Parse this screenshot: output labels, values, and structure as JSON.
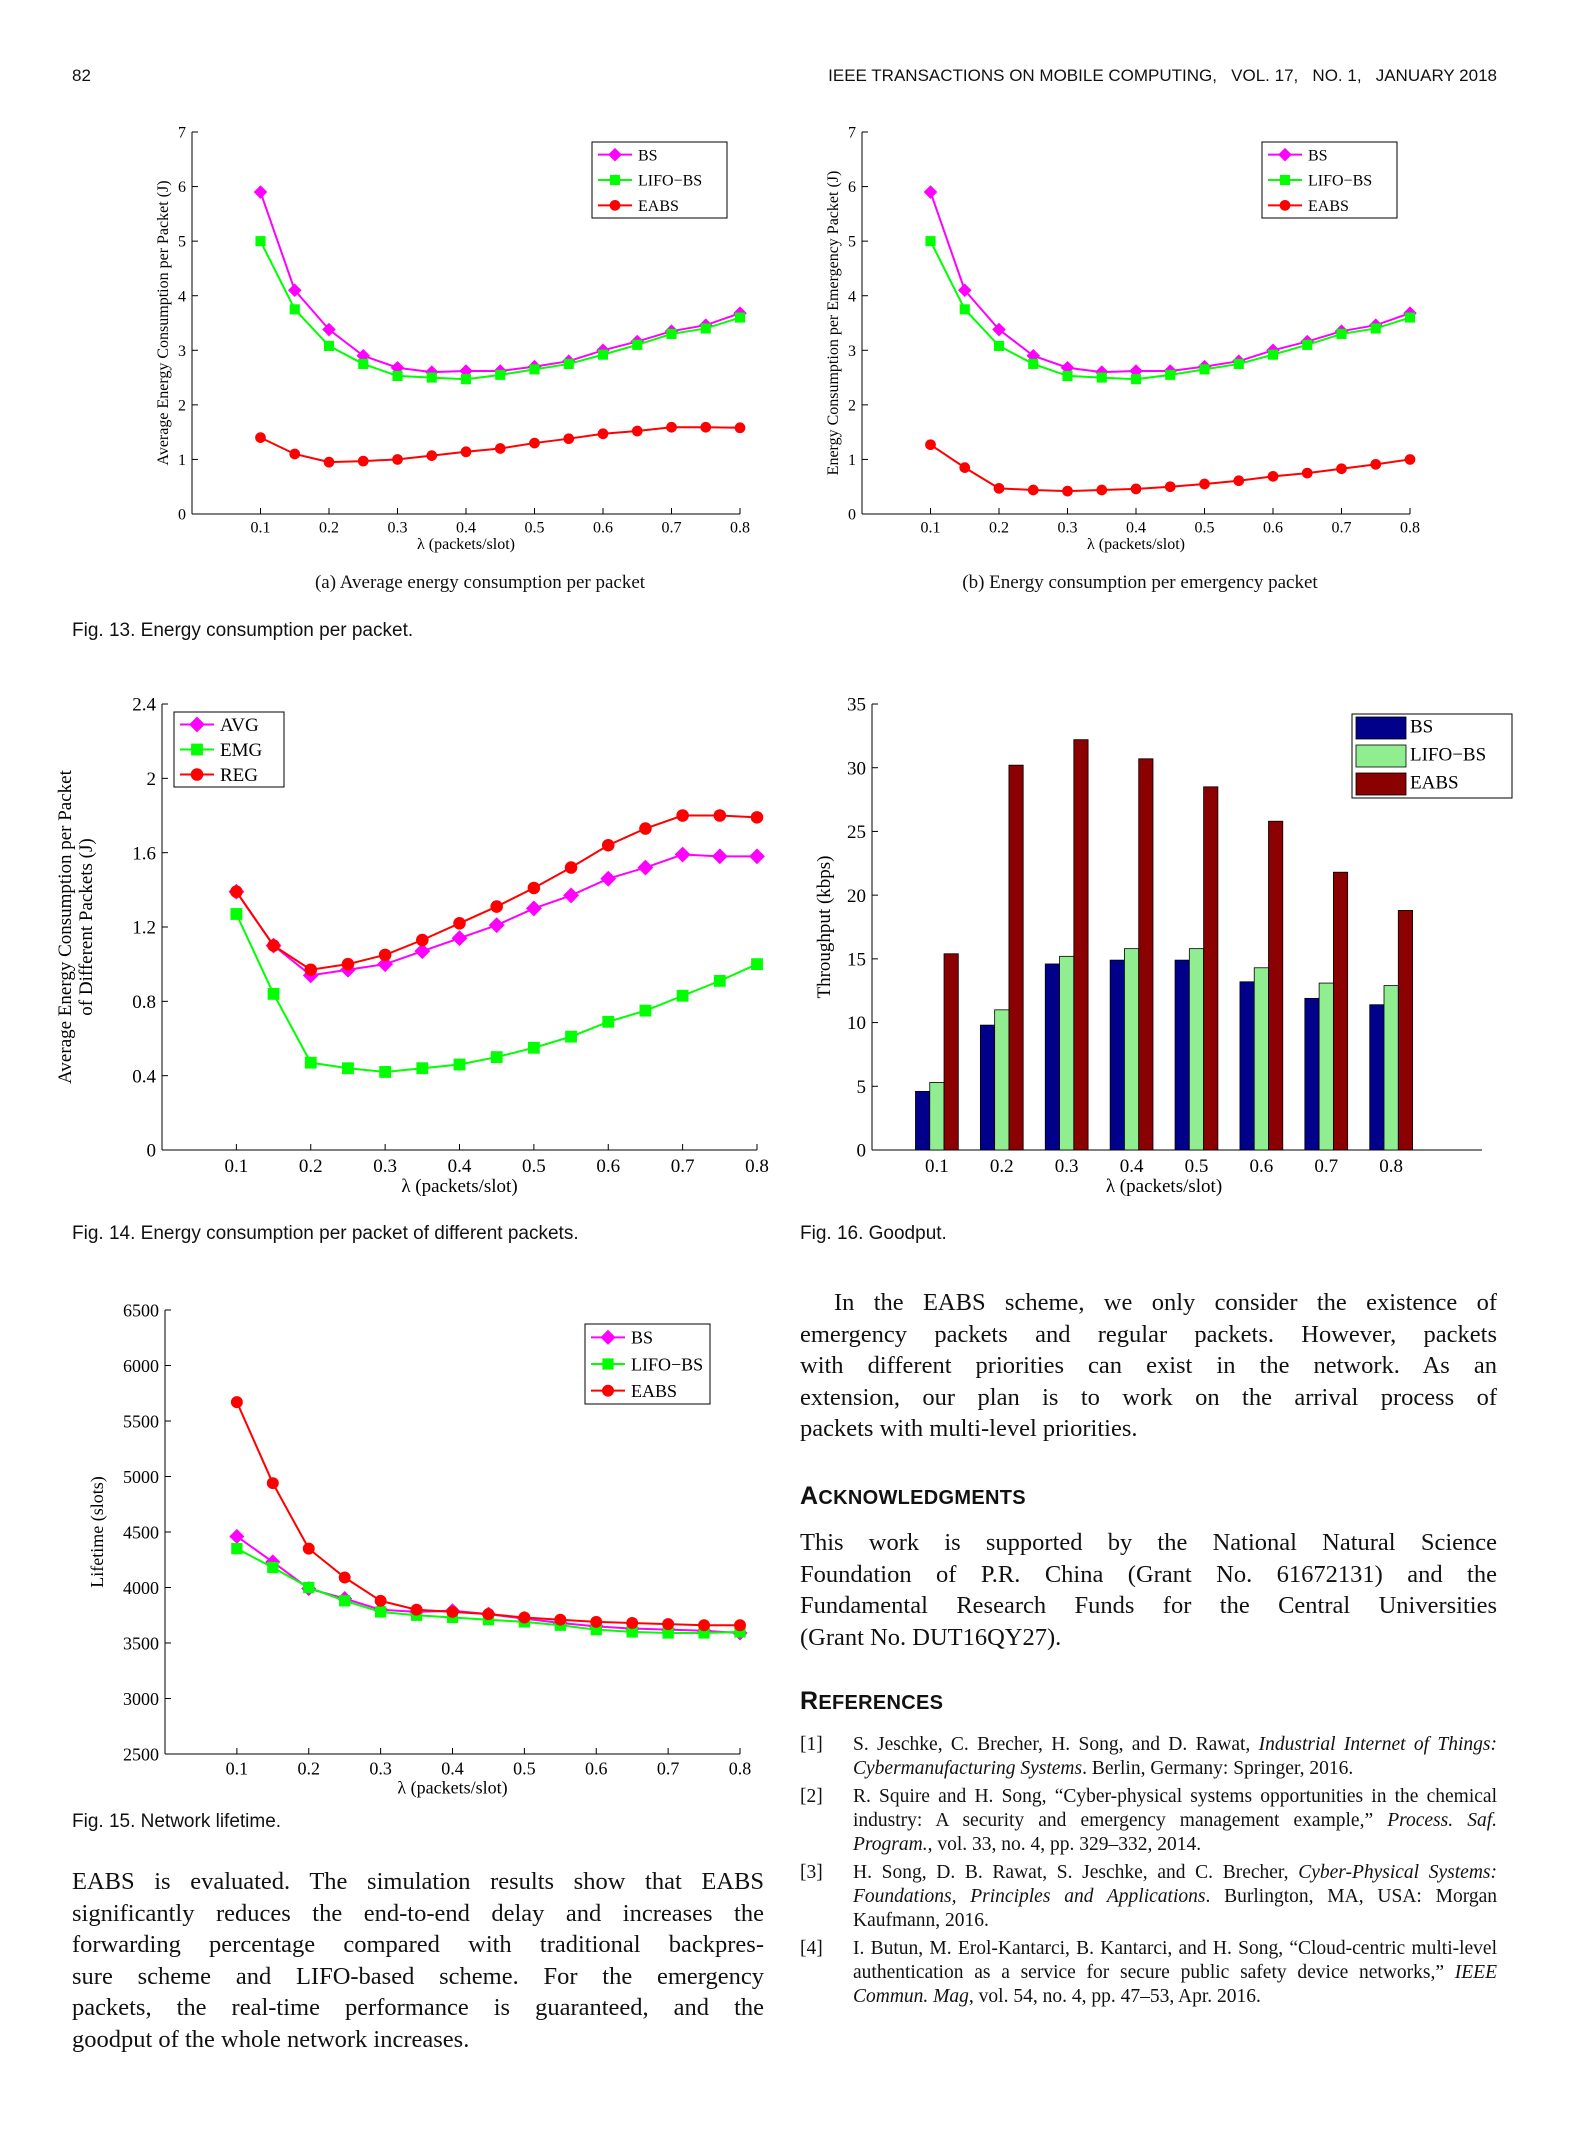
{
  "header": {
    "page_number": "82",
    "journal": "IEEE TRANSACTIONS ON MOBILE COMPUTING,   VOL. 17,   NO. 1,   JANUARY 2018"
  },
  "fig13": {
    "caption": "Fig. 13. Energy consumption per packet.",
    "a_caption": "(a) Average energy consumption per packet",
    "b_caption": "(b) Energy consumption per emergency packet"
  },
  "fig14": {
    "caption": "Fig. 14. Energy consumption per packet of different packets."
  },
  "fig15": {
    "caption": "Fig. 15. Network lifetime."
  },
  "fig16": {
    "caption": "Fig. 16. Goodput."
  },
  "colors": {
    "magenta": "#ff00ff",
    "green": "#00ff00",
    "red": "#ff0000",
    "navy": "#00008b",
    "lightgreen": "#90ee90",
    "maroon": "#8b0000"
  },
  "chart_data": [
    {
      "id": "fig13a",
      "type": "line",
      "ylabel": "Average Energy Consumption per Packet (J)",
      "xlabel": "λ (packets/slot)",
      "xlim": [
        0,
        0.8
      ],
      "ylim": [
        0,
        7
      ],
      "xticks": [
        0.1,
        0.2,
        0.3,
        0.4,
        0.5,
        0.6,
        0.7,
        0.8
      ],
      "yticks": [
        0,
        1,
        2,
        3,
        4,
        5,
        6,
        7
      ],
      "legend_position": "top-right",
      "x": [
        0.1,
        0.15,
        0.2,
        0.25,
        0.3,
        0.35,
        0.4,
        0.45,
        0.5,
        0.55,
        0.6,
        0.65,
        0.7,
        0.75,
        0.8
      ],
      "series": [
        {
          "name": "BS",
          "color": "#ff00ff",
          "marker": "diamond",
          "values": [
            5.9,
            4.1,
            3.38,
            2.9,
            2.68,
            2.6,
            2.62,
            2.62,
            2.7,
            2.8,
            3.0,
            3.16,
            3.35,
            3.46,
            3.68
          ]
        },
        {
          "name": "LIFO−BS",
          "color": "#00ff00",
          "marker": "square",
          "values": [
            5.0,
            3.75,
            3.08,
            2.75,
            2.53,
            2.5,
            2.47,
            2.55,
            2.65,
            2.75,
            2.92,
            3.1,
            3.3,
            3.4,
            3.6
          ]
        },
        {
          "name": "EABS",
          "color": "#ff0000",
          "marker": "circle",
          "values": [
            1.4,
            1.1,
            0.95,
            0.97,
            1.0,
            1.07,
            1.14,
            1.2,
            1.3,
            1.38,
            1.47,
            1.52,
            1.59,
            1.59,
            1.58
          ]
        }
      ]
    },
    {
      "id": "fig13b",
      "type": "line",
      "ylabel": "Energy Consumption per Emergency Packet (J)",
      "xlabel": "λ (packets/slot)",
      "xlim": [
        0,
        0.8
      ],
      "ylim": [
        0,
        7
      ],
      "xticks": [
        0.1,
        0.2,
        0.3,
        0.4,
        0.5,
        0.6,
        0.7,
        0.8
      ],
      "yticks": [
        0,
        1,
        2,
        3,
        4,
        5,
        6,
        7
      ],
      "legend_position": "top-right",
      "x": [
        0.1,
        0.15,
        0.2,
        0.25,
        0.3,
        0.35,
        0.4,
        0.45,
        0.5,
        0.55,
        0.6,
        0.65,
        0.7,
        0.75,
        0.8
      ],
      "series": [
        {
          "name": "BS",
          "color": "#ff00ff",
          "marker": "diamond",
          "values": [
            5.9,
            4.1,
            3.38,
            2.9,
            2.68,
            2.6,
            2.62,
            2.62,
            2.7,
            2.8,
            3.0,
            3.16,
            3.35,
            3.46,
            3.68
          ]
        },
        {
          "name": "LIFO−BS",
          "color": "#00ff00",
          "marker": "square",
          "values": [
            5.0,
            3.75,
            3.08,
            2.75,
            2.53,
            2.5,
            2.47,
            2.55,
            2.65,
            2.75,
            2.92,
            3.1,
            3.3,
            3.4,
            3.6
          ]
        },
        {
          "name": "EABS",
          "color": "#ff0000",
          "marker": "circle",
          "values": [
            1.27,
            0.85,
            0.47,
            0.44,
            0.42,
            0.44,
            0.46,
            0.5,
            0.55,
            0.61,
            0.69,
            0.75,
            0.83,
            0.91,
            1.0
          ]
        }
      ]
    },
    {
      "id": "fig14",
      "type": "line",
      "ylabel": "Average Energy Consumption per Packet of Different Packets (J)",
      "ylabel_lines": [
        "Average Energy Consumption per Packet",
        "of Different Packets (J)"
      ],
      "xlabel": "λ (packets/slot)",
      "xlim": [
        0,
        0.8
      ],
      "ylim": [
        0,
        2.4
      ],
      "xticks": [
        0.1,
        0.2,
        0.3,
        0.4,
        0.5,
        0.6,
        0.7,
        0.8
      ],
      "yticks": [
        0,
        0.4,
        0.8,
        1.2,
        1.6,
        2,
        2.4
      ],
      "legend_position": "top-left",
      "x": [
        0.1,
        0.15,
        0.2,
        0.25,
        0.3,
        0.35,
        0.4,
        0.45,
        0.5,
        0.55,
        0.6,
        0.65,
        0.7,
        0.75,
        0.8
      ],
      "series": [
        {
          "name": "AVG",
          "color": "#ff00ff",
          "marker": "diamond",
          "values": [
            1.39,
            1.1,
            0.94,
            0.97,
            1.0,
            1.07,
            1.14,
            1.21,
            1.3,
            1.37,
            1.46,
            1.52,
            1.59,
            1.58,
            1.58
          ]
        },
        {
          "name": "EMG",
          "color": "#00ff00",
          "marker": "square",
          "values": [
            1.27,
            0.84,
            0.47,
            0.44,
            0.42,
            0.44,
            0.46,
            0.5,
            0.55,
            0.61,
            0.69,
            0.75,
            0.83,
            0.91,
            1.0
          ]
        },
        {
          "name": "REG",
          "color": "#ff0000",
          "marker": "circle",
          "values": [
            1.39,
            1.1,
            0.97,
            1.0,
            1.05,
            1.13,
            1.22,
            1.31,
            1.41,
            1.52,
            1.64,
            1.73,
            1.8,
            1.8,
            1.79
          ]
        }
      ]
    },
    {
      "id": "fig15",
      "type": "line",
      "ylabel": "Lifetime (slots)",
      "xlabel": "λ (packets/slot)",
      "xlim": [
        0,
        0.8
      ],
      "ylim": [
        2500,
        6500
      ],
      "xticks": [
        0.1,
        0.2,
        0.3,
        0.4,
        0.5,
        0.6,
        0.7,
        0.8
      ],
      "yticks": [
        2500,
        3000,
        3500,
        4000,
        4500,
        5000,
        5500,
        6000,
        6500
      ],
      "legend_position": "top-right",
      "x": [
        0.1,
        0.15,
        0.2,
        0.25,
        0.3,
        0.35,
        0.4,
        0.45,
        0.5,
        0.55,
        0.6,
        0.65,
        0.7,
        0.75,
        0.8
      ],
      "series": [
        {
          "name": "BS",
          "color": "#ff00ff",
          "marker": "diamond",
          "values": [
            4460,
            4230,
            3990,
            3900,
            3800,
            3780,
            3790,
            3760,
            3720,
            3680,
            3650,
            3630,
            3620,
            3610,
            3590
          ]
        },
        {
          "name": "LIFO−BS",
          "color": "#00ff00",
          "marker": "square",
          "values": [
            4350,
            4180,
            4000,
            3880,
            3780,
            3750,
            3730,
            3710,
            3690,
            3660,
            3620,
            3600,
            3590,
            3590,
            3600
          ]
        },
        {
          "name": "EABS",
          "color": "#ff0000",
          "marker": "circle",
          "values": [
            5670,
            4940,
            4350,
            4090,
            3880,
            3800,
            3780,
            3760,
            3730,
            3710,
            3690,
            3680,
            3670,
            3660,
            3660
          ]
        }
      ]
    },
    {
      "id": "fig16",
      "type": "bar",
      "ylabel": "Throughput (kbps)",
      "xlabel": "λ (packets/slot)",
      "ylim": [
        0,
        35
      ],
      "yticks": [
        0,
        5,
        10,
        15,
        20,
        25,
        30,
        35
      ],
      "legend_position": "top-right",
      "categories": [
        "0.1",
        "0.2",
        "0.3",
        "0.4",
        "0.5",
        "0.6",
        "0.7",
        "0.8"
      ],
      "series": [
        {
          "name": "BS",
          "color": "#00008b",
          "values": [
            4.6,
            9.8,
            14.6,
            14.9,
            14.9,
            13.2,
            11.9,
            11.4
          ]
        },
        {
          "name": "LIFO−BS",
          "color": "#90ee90",
          "values": [
            5.3,
            11.0,
            15.2,
            15.8,
            15.8,
            14.3,
            13.1,
            12.9
          ]
        },
        {
          "name": "EABS",
          "color": "#8b0000",
          "values": [
            15.4,
            30.2,
            32.2,
            30.7,
            28.5,
            25.8,
            21.8,
            18.8
          ]
        }
      ]
    }
  ],
  "body_left": [
    "EABS is evaluated. The simulation results show that EABS",
    "significantly reduces the end-to-end delay and increases the",
    "forwarding percentage compared with traditional backpres-",
    "sure scheme and LIFO-based scheme. For the emergency",
    "packets, the real-time performance is guaranteed, and the",
    "goodput of the whole network increases."
  ],
  "body_right": [
    "In the EABS scheme, we only consider the existence of",
    "emergency packets and regular packets. However, packets",
    "with different priorities can exist in the network. As an",
    "extension, our plan is to work on the arrival process of",
    "packets with multi-level priorities."
  ],
  "acknowledgments": {
    "heading_first": "A",
    "heading_rest": "CKNOWLEDGMENTS",
    "lines": [
      "This work is supported by the National Natural Science",
      "Foundation of P.R. China (Grant No. 61672131) and the",
      "Fundamental Research Funds for the Central Universities",
      "(Grant No. DUT16QY27)."
    ]
  },
  "references": {
    "heading_first": "R",
    "heading_rest": "EFERENCES",
    "items": [
      {
        "num": "[1]",
        "pre": "S. Jeschke, C. Brecher, H. Song, and D. Rawat, ",
        "ital": "Industrial Internet of Things: Cybermanufacturing Systems",
        "post": ". Berlin, Germany: Springer, 2016."
      },
      {
        "num": "[2]",
        "pre": "R. Squire and H. Song, “Cyber-physical systems opportunities in the chemical industry: A security and emergency management example,” ",
        "ital": "Process. Saf. Program.",
        "post": ", vol. 33, no. 4, pp. 329–332, 2014."
      },
      {
        "num": "[3]",
        "pre": "H. Song, D. B. Rawat, S. Jeschke, and C. Brecher, ",
        "ital": "Cyber-Physical Systems: Foundations, Principles and Applications",
        "post": ". Burlington, MA, USA: Morgan Kaufmann, 2016."
      },
      {
        "num": "[4]",
        "pre": "I. Butun, M. Erol-Kantarci, B. Kantarci, and H. Song, “Cloud-centric multi-level authentication as a service for secure public safety device networks,” ",
        "ital": "IEEE Commun. Mag",
        "post": ", vol. 54, no. 4, pp. 47–53, Apr. 2016."
      }
    ]
  }
}
